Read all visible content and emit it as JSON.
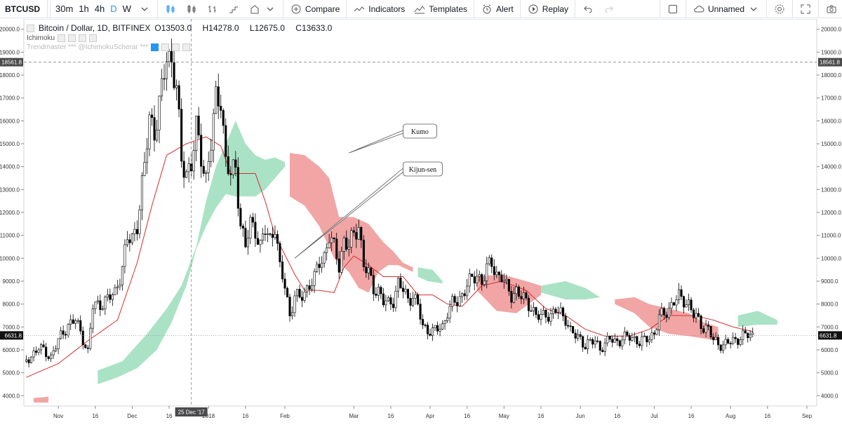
{
  "toolbar": {
    "symbol": "BTCUSD",
    "intervals": [
      "30m",
      "1h",
      "4h",
      "D",
      "W"
    ],
    "active_interval": "D",
    "compare": "Compare",
    "indicators": "Indicators",
    "templates": "Templates",
    "alert": "Alert",
    "replay": "Replay",
    "layout_name": "Unnamed"
  },
  "legend": {
    "title": "Bitcoin / Dollar, 1D, BITFINEX",
    "o_label": "O",
    "o": "13503.0",
    "h_label": "H",
    "h": "14278.0",
    "l_label": "L",
    "l": "12675.0",
    "c_label": "C",
    "c": "13633.0",
    "indicator1": "Ichimoku",
    "indicator2": "Trendmaster *** @IchimokuScherar ***"
  },
  "annotations": [
    {
      "text": "Kumo"
    },
    {
      "text": "Kijun-sen"
    }
  ],
  "price_tags": {
    "crosshair_price": "18561.8",
    "last_price": "6631.8",
    "crosshair_date": "25 Dec '17"
  },
  "colors": {
    "bullish_cloud": "#a5e0c2",
    "bearish_cloud": "#f0a0a0",
    "kijun": "#d32f2f",
    "candle": "#000000",
    "accent": "#2196f3"
  },
  "chart_data": {
    "type": "candlestick",
    "yticks": [
      4000,
      5000,
      6000,
      7000,
      8000,
      9000,
      10000,
      11000,
      12000,
      13000,
      14000,
      15000,
      16000,
      17000,
      18000,
      19000,
      20000
    ],
    "ylim": [
      3550,
      20450
    ],
    "xticks": [
      "Nov",
      "16",
      "Dec",
      "16",
      "2018",
      "16",
      "Feb",
      "Mar",
      "16",
      "Apr",
      "16",
      "May",
      "16",
      "Jun",
      "16",
      "Jul",
      "16",
      "Aug",
      "16",
      "Sep"
    ],
    "xtick_days": [
      0,
      15,
      30,
      45,
      61,
      76,
      92,
      120,
      135,
      151,
      166,
      181,
      196,
      212,
      227,
      242,
      257,
      273,
      288,
      304
    ],
    "x_domain": [
      -14,
      308
    ],
    "price_path": [
      [
        -13,
        5500
      ],
      [
        -8,
        6100
      ],
      [
        -3,
        5700
      ],
      [
        0,
        6400
      ],
      [
        4,
        7100
      ],
      [
        7,
        7300
      ],
      [
        10,
        6500
      ],
      [
        12,
        5900
      ],
      [
        14,
        7900
      ],
      [
        17,
        8000
      ],
      [
        20,
        8200
      ],
      [
        23,
        8500
      ],
      [
        26,
        9600
      ],
      [
        28,
        10800
      ],
      [
        30,
        10900
      ],
      [
        32,
        11500
      ],
      [
        35,
        13900
      ],
      [
        37,
        16300
      ],
      [
        39,
        15500
      ],
      [
        42,
        17200
      ],
      [
        44,
        19000
      ],
      [
        46,
        18600
      ],
      [
        48,
        17400
      ],
      [
        50,
        14200
      ],
      [
        52,
        13800
      ],
      [
        54,
        14100
      ],
      [
        56,
        15600
      ],
      [
        58,
        14500
      ],
      [
        60,
        13500
      ],
      [
        62,
        15000
      ],
      [
        64,
        16900
      ],
      [
        66,
        17100
      ],
      [
        68,
        14200
      ],
      [
        70,
        13600
      ],
      [
        72,
        14000
      ],
      [
        74,
        11500
      ],
      [
        76,
        10500
      ],
      [
        78,
        11500
      ],
      [
        80,
        11300
      ],
      [
        82,
        10500
      ],
      [
        84,
        11200
      ],
      [
        86,
        10800
      ],
      [
        88,
        11500
      ],
      [
        90,
        9500
      ],
      [
        92,
        8800
      ],
      [
        94,
        7500
      ],
      [
        96,
        8400
      ],
      [
        98,
        8200
      ],
      [
        100,
        8500
      ],
      [
        102,
        8900
      ],
      [
        104,
        9100
      ],
      [
        106,
        9800
      ],
      [
        108,
        10100
      ],
      [
        110,
        11000
      ],
      [
        112,
        10400
      ],
      [
        114,
        9700
      ],
      [
        116,
        10800
      ],
      [
        118,
        10500
      ],
      [
        120,
        11000
      ],
      [
        122,
        11500
      ],
      [
        124,
        9700
      ],
      [
        126,
        9300
      ],
      [
        128,
        8700
      ],
      [
        130,
        8600
      ],
      [
        132,
        8100
      ],
      [
        134,
        8000
      ],
      [
        136,
        8200
      ],
      [
        138,
        8900
      ],
      [
        140,
        8600
      ],
      [
        142,
        8200
      ],
      [
        144,
        8400
      ],
      [
        146,
        7900
      ],
      [
        148,
        7000
      ],
      [
        150,
        6900
      ],
      [
        152,
        6800
      ],
      [
        154,
        6900
      ],
      [
        156,
        7000
      ],
      [
        158,
        7700
      ],
      [
        160,
        8000
      ],
      [
        162,
        8100
      ],
      [
        164,
        8400
      ],
      [
        166,
        8900
      ],
      [
        168,
        9000
      ],
      [
        170,
        9300
      ],
      [
        172,
        9000
      ],
      [
        174,
        9500
      ],
      [
        176,
        9800
      ],
      [
        178,
        9300
      ],
      [
        180,
        9200
      ],
      [
        182,
        8700
      ],
      [
        184,
        8400
      ],
      [
        186,
        8600
      ],
      [
        188,
        8300
      ],
      [
        190,
        8100
      ],
      [
        192,
        7900
      ],
      [
        194,
        7500
      ],
      [
        196,
        7400
      ],
      [
        198,
        7600
      ],
      [
        200,
        7500
      ],
      [
        202,
        7700
      ],
      [
        204,
        7600
      ],
      [
        206,
        7400
      ],
      [
        208,
        6800
      ],
      [
        210,
        6600
      ],
      [
        212,
        6500
      ],
      [
        214,
        6200
      ],
      [
        216,
        6300
      ],
      [
        218,
        6400
      ],
      [
        220,
        6100
      ],
      [
        222,
        6200
      ],
      [
        224,
        6500
      ],
      [
        226,
        6400
      ],
      [
        228,
        6400
      ],
      [
        230,
        6500
      ],
      [
        232,
        6600
      ],
      [
        234,
        6500
      ],
      [
        236,
        6300
      ],
      [
        238,
        6400
      ],
      [
        240,
        6600
      ],
      [
        242,
        6700
      ],
      [
        244,
        7400
      ],
      [
        246,
        7600
      ],
      [
        248,
        7800
      ],
      [
        250,
        8100
      ],
      [
        252,
        8300
      ],
      [
        254,
        8200
      ],
      [
        256,
        8000
      ],
      [
        258,
        7500
      ],
      [
        260,
        7300
      ],
      [
        262,
        7000
      ],
      [
        264,
        6900
      ],
      [
        266,
        6400
      ],
      [
        268,
        6300
      ],
      [
        270,
        6200
      ],
      [
        272,
        6300
      ],
      [
        274,
        6400
      ],
      [
        276,
        6500
      ],
      [
        278,
        6600
      ],
      [
        280,
        6650
      ],
      [
        282,
        6630
      ]
    ],
    "kijun_path": [
      [
        -13,
        4800
      ],
      [
        0,
        5400
      ],
      [
        12,
        6400
      ],
      [
        24,
        7300
      ],
      [
        32,
        9800
      ],
      [
        38,
        12300
      ],
      [
        44,
        14500
      ],
      [
        52,
        15000
      ],
      [
        60,
        15300
      ],
      [
        66,
        14900
      ],
      [
        70,
        13700
      ],
      [
        80,
        13700
      ],
      [
        84,
        12500
      ],
      [
        88,
        11000
      ],
      [
        96,
        9300
      ],
      [
        100,
        8600
      ],
      [
        106,
        8600
      ],
      [
        112,
        8500
      ],
      [
        116,
        9600
      ],
      [
        120,
        10100
      ],
      [
        126,
        9700
      ],
      [
        132,
        9200
      ],
      [
        140,
        9200
      ],
      [
        146,
        8400
      ],
      [
        152,
        8400
      ],
      [
        158,
        8000
      ],
      [
        164,
        7900
      ],
      [
        172,
        8800
      ],
      [
        180,
        9000
      ],
      [
        190,
        8600
      ],
      [
        198,
        7800
      ],
      [
        206,
        7500
      ],
      [
        214,
        6900
      ],
      [
        222,
        6600
      ],
      [
        232,
        6600
      ],
      [
        240,
        6900
      ],
      [
        248,
        7500
      ],
      [
        258,
        7500
      ],
      [
        266,
        7300
      ],
      [
        274,
        7000
      ],
      [
        282,
        6800
      ]
    ],
    "cloud_segments": [
      {
        "kind": "bullish",
        "top": [
          [
            16,
            5100
          ],
          [
            26,
            5500
          ],
          [
            36,
            6700
          ],
          [
            44,
            7800
          ],
          [
            50,
            8800
          ],
          [
            56,
            10500
          ],
          [
            60,
            12500
          ],
          [
            64,
            14000
          ],
          [
            68,
            15000
          ],
          [
            72,
            16000
          ],
          [
            76,
            15000
          ],
          [
            80,
            14500
          ],
          [
            84,
            14300
          ],
          [
            88,
            14400
          ],
          [
            92,
            14200
          ]
        ],
        "bottom": [
          [
            16,
            4500
          ],
          [
            24,
            4800
          ],
          [
            32,
            5200
          ],
          [
            40,
            6000
          ],
          [
            46,
            7200
          ],
          [
            52,
            8800
          ],
          [
            56,
            10400
          ],
          [
            60,
            11400
          ],
          [
            64,
            12200
          ],
          [
            68,
            12800
          ],
          [
            72,
            12700
          ],
          [
            80,
            12700
          ],
          [
            84,
            13000
          ],
          [
            88,
            13500
          ],
          [
            92,
            14000
          ]
        ]
      },
      {
        "kind": "bearish",
        "top": [
          [
            94,
            14600
          ],
          [
            100,
            14500
          ],
          [
            106,
            14000
          ],
          [
            110,
            13500
          ],
          [
            114,
            11800
          ],
          [
            120,
            11800
          ],
          [
            126,
            11500
          ],
          [
            132,
            10700
          ],
          [
            136,
            10300
          ],
          [
            140,
            9800
          ],
          [
            144,
            9600
          ]
        ],
        "bottom": [
          [
            94,
            12700
          ],
          [
            100,
            12300
          ],
          [
            106,
            11400
          ],
          [
            112,
            10000
          ],
          [
            118,
            9400
          ],
          [
            122,
            8700
          ],
          [
            126,
            8500
          ],
          [
            130,
            9400
          ],
          [
            134,
            9700
          ],
          [
            138,
            9700
          ],
          [
            144,
            9400
          ]
        ]
      },
      {
        "kind": "bullish",
        "top": [
          [
            146,
            9600
          ],
          [
            152,
            9500
          ],
          [
            156,
            9000
          ]
        ],
        "bottom": [
          [
            146,
            9200
          ],
          [
            150,
            9000
          ],
          [
            156,
            8900
          ]
        ]
      },
      {
        "kind": "bearish",
        "top": [
          [
            170,
            9200
          ],
          [
            180,
            9300
          ],
          [
            190,
            9000
          ],
          [
            196,
            8800
          ]
        ],
        "bottom": [
          [
            170,
            8600
          ],
          [
            178,
            7700
          ],
          [
            186,
            7600
          ],
          [
            196,
            8400
          ]
        ]
      },
      {
        "kind": "bullish",
        "top": [
          [
            196,
            8800
          ],
          [
            206,
            9000
          ],
          [
            214,
            8700
          ],
          [
            220,
            8300
          ]
        ],
        "bottom": [
          [
            196,
            8500
          ],
          [
            206,
            8200
          ],
          [
            214,
            8200
          ],
          [
            220,
            8300
          ]
        ]
      },
      {
        "kind": "bearish",
        "top": [
          [
            226,
            8200
          ],
          [
            234,
            8300
          ],
          [
            240,
            8000
          ],
          [
            248,
            7800
          ],
          [
            256,
            7600
          ],
          [
            262,
            7200
          ],
          [
            268,
            7000
          ]
        ],
        "bottom": [
          [
            226,
            8000
          ],
          [
            234,
            7600
          ],
          [
            240,
            7000
          ],
          [
            248,
            6700
          ],
          [
            256,
            6600
          ],
          [
            262,
            6500
          ],
          [
            268,
            6400
          ]
        ]
      },
      {
        "kind": "bullish",
        "top": [
          [
            276,
            7500
          ],
          [
            284,
            7700
          ],
          [
            292,
            7300
          ]
        ],
        "bottom": [
          [
            276,
            7000
          ],
          [
            284,
            7100
          ],
          [
            292,
            7100
          ]
        ]
      }
    ],
    "bottom_cloud": {
      "kind": "bearish",
      "top": [
        [
          -10,
          3900
        ],
        [
          -4,
          3950
        ]
      ],
      "bottom": [
        [
          -10,
          3700
        ],
        [
          -4,
          3700
        ]
      ]
    }
  }
}
